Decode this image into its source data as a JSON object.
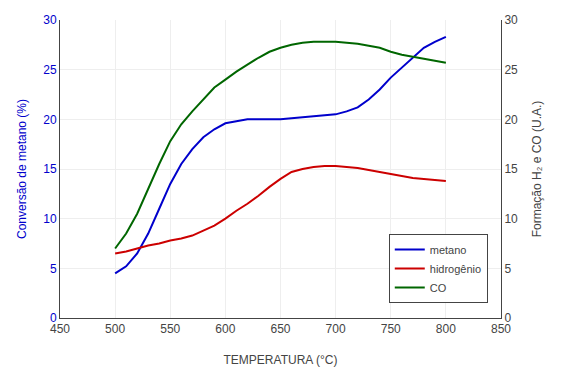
{
  "chart_data": {
    "type": "line",
    "xlabel": "TEMPERATURA (°C)",
    "ylabel": "Conversão de metano (%)",
    "y2label": "Formação H₂ e CO (U.A.)",
    "x": [
      500,
      510,
      520,
      530,
      540,
      550,
      560,
      570,
      580,
      590,
      600,
      610,
      620,
      630,
      640,
      650,
      660,
      670,
      680,
      690,
      700,
      710,
      720,
      730,
      740,
      750,
      760,
      770,
      780,
      790,
      800
    ],
    "series": [
      {
        "name": "metano",
        "color": "#0000cc",
        "values": [
          4.5,
          5.2,
          6.5,
          8.5,
          11.0,
          13.5,
          15.5,
          17.0,
          18.2,
          19.0,
          19.6,
          19.8,
          20.0,
          20.0,
          20.0,
          20.0,
          20.1,
          20.2,
          20.3,
          20.4,
          20.5,
          20.8,
          21.2,
          22.0,
          23.0,
          24.2,
          25.2,
          26.2,
          27.2,
          27.8,
          28.3
        ]
      },
      {
        "name": "hidrogênio",
        "color": "#cc0000",
        "axis": "y2",
        "values": [
          6.5,
          6.7,
          7.0,
          7.3,
          7.5,
          7.8,
          8.0,
          8.3,
          8.8,
          9.3,
          10.0,
          10.8,
          11.5,
          12.3,
          13.2,
          14.0,
          14.7,
          15.0,
          15.2,
          15.3,
          15.3,
          15.2,
          15.1,
          14.9,
          14.7,
          14.5,
          14.3,
          14.1,
          14.0,
          13.9,
          13.8
        ]
      },
      {
        "name": "CO",
        "color": "#006600",
        "axis": "y2",
        "values": [
          7.0,
          8.5,
          10.5,
          13.0,
          15.5,
          17.8,
          19.5,
          20.8,
          22.0,
          23.2,
          24.0,
          24.8,
          25.5,
          26.2,
          26.8,
          27.2,
          27.5,
          27.7,
          27.8,
          27.8,
          27.8,
          27.7,
          27.6,
          27.4,
          27.2,
          26.8,
          26.5,
          26.3,
          26.1,
          25.9,
          25.7
        ]
      }
    ],
    "xlim": [
      450,
      850
    ],
    "xticks": [
      450,
      500,
      550,
      600,
      650,
      700,
      750,
      800,
      850
    ],
    "ylim": [
      0,
      30
    ],
    "yticks": [
      0,
      5,
      10,
      15,
      20,
      25,
      30
    ],
    "y2lim": [
      0,
      30
    ],
    "y2ticks": [
      0,
      5,
      10,
      15,
      20,
      25,
      30
    ],
    "grid": true,
    "legend": "lower right"
  }
}
